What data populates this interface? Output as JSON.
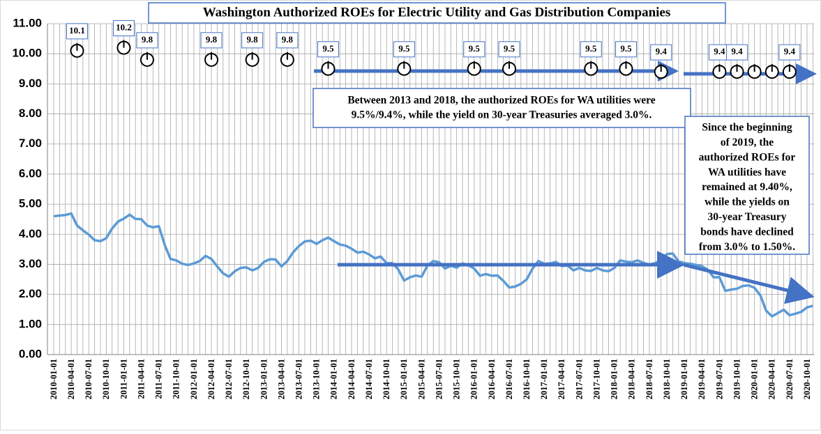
{
  "chart_data": {
    "type": "line",
    "title": "Washington Authorized ROEs for Electric Utility and Gas  Distribution Companies",
    "categories": [
      "2010-01-01",
      null,
      null,
      "2010-04-01",
      null,
      null,
      "2010-07-01",
      null,
      null,
      "2010-10-01",
      null,
      null,
      "2011-01-01",
      null,
      null,
      "2011-04-01",
      null,
      null,
      "2011-07-01",
      null,
      null,
      "2011-10-01",
      null,
      null,
      "2012-01-01",
      null,
      null,
      "2012-04-01",
      null,
      null,
      "2012-07-01",
      null,
      null,
      "2012-10-01",
      null,
      null,
      "2013-01-01",
      null,
      null,
      "2013-04-01",
      null,
      null,
      "2013-07-01",
      null,
      null,
      "2013-10-01",
      null,
      null,
      "2014-01-01",
      null,
      null,
      "2014-04-01",
      null,
      null,
      "2014-07-01",
      null,
      null,
      "2014-10-01",
      null,
      null,
      "2015-01-01",
      null,
      null,
      "2015-04-01",
      null,
      null,
      "2015-07-01",
      null,
      null,
      "2015-10-01",
      null,
      null,
      "2016-01-01",
      null,
      null,
      "2016-04-01",
      null,
      null,
      "2016-07-01",
      null,
      null,
      "2016-10-01",
      null,
      null,
      "2017-01-01",
      null,
      null,
      "2017-04-01",
      null,
      null,
      "2017-07-01",
      null,
      null,
      "2017-10-01",
      null,
      null,
      "2018-01-01",
      null,
      null,
      "2018-04-01",
      null,
      null,
      "2018-07-01",
      null,
      null,
      "2018-10-01",
      null,
      null,
      "2019-01-01",
      null,
      null,
      "2019-04-01",
      null,
      null,
      "2019-07-01",
      null,
      null,
      "2019-10-01",
      null,
      null,
      "2020-01-01",
      null,
      null,
      "2020-04-01",
      null,
      null,
      "2020-07-01",
      null,
      null,
      "2020-10-01",
      null
    ],
    "series": [
      {
        "name": null,
        "color": "#5b9bd5",
        "values": [
          4.6,
          4.62,
          4.64,
          4.69,
          4.29,
          4.13,
          3.99,
          3.8,
          3.77,
          3.87,
          4.19,
          4.42,
          4.52,
          4.65,
          4.51,
          4.5,
          4.29,
          4.23,
          4.27,
          3.65,
          3.18,
          3.13,
          3.02,
          2.98,
          3.03,
          3.11,
          3.28,
          3.18,
          2.93,
          2.7,
          2.59,
          2.77,
          2.88,
          2.9,
          2.8,
          2.88,
          3.08,
          3.17,
          3.16,
          2.93,
          3.11,
          3.4,
          3.61,
          3.76,
          3.79,
          3.68,
          3.8,
          3.89,
          3.77,
          3.66,
          3.62,
          3.52,
          3.39,
          3.42,
          3.33,
          3.2,
          3.26,
          3.04,
          3.04,
          2.83,
          2.46,
          2.57,
          2.63,
          2.59,
          2.96,
          3.11,
          3.07,
          2.86,
          2.95,
          2.89,
          3.03,
          2.97,
          2.86,
          2.62,
          2.68,
          2.62,
          2.63,
          2.45,
          2.23,
          2.26,
          2.35,
          2.5,
          2.86,
          3.11,
          3.02,
          3.03,
          3.08,
          2.94,
          2.96,
          2.8,
          2.88,
          2.8,
          2.78,
          2.88,
          2.8,
          2.77,
          2.88,
          3.13,
          3.09,
          3.07,
          3.13,
          3.05,
          2.99,
          3.04,
          3.15,
          3.34,
          3.36,
          3.1,
          3.04,
          3.02,
          2.98,
          2.94,
          2.82,
          2.57,
          2.57,
          2.12,
          2.16,
          2.19,
          2.28,
          2.3,
          2.22,
          1.97,
          1.46,
          1.27,
          1.38,
          1.49,
          1.31,
          1.36,
          1.42,
          1.57,
          1.62
        ]
      }
    ],
    "roe": {
      "color": "#000000",
      "x": [
        "2010-05-01",
        "2011-01-01",
        "2011-05-01",
        "2012-04-01",
        "2012-11-01",
        "2013-05-01",
        "2013-12-01",
        "2015-01-01",
        "2016-01-01",
        "2016-07-01",
        "2017-09-01",
        "2018-03-01",
        "2018-09-01",
        "2019-07-01",
        "2019-10-01",
        "2020-01-01",
        "2020-04-01",
        "2020-07-01"
      ],
      "values": [
        10.1,
        10.2,
        9.8,
        9.8,
        9.8,
        9.8,
        9.5,
        9.5,
        9.5,
        9.5,
        9.5,
        9.5,
        9.4,
        9.4,
        9.4,
        9.4,
        9.4,
        9.4
      ],
      "value_labels": [
        "10.1",
        "10.2",
        "9.8",
        "9.8",
        "9.8",
        "9.8",
        "9.5",
        "9.5",
        "9.5",
        "9.5",
        "9.5",
        "9.5",
        "9.4",
        "9.4",
        "9.4",
        null,
        null,
        "9.4"
      ]
    },
    "ylim": [
      0,
      11
    ],
    "yticks": [
      {
        "value": 0,
        "label": "0.00"
      },
      {
        "value": 1,
        "label": "1.00"
      },
      {
        "value": 2,
        "label": "2.00"
      },
      {
        "value": 3,
        "label": "3.00"
      },
      {
        "value": 4,
        "label": "4.00"
      },
      {
        "value": 5,
        "label": "5.00"
      },
      {
        "value": 6,
        "label": "6.00"
      },
      {
        "value": 7,
        "label": "7.00"
      },
      {
        "value": 8,
        "label": "8.00"
      },
      {
        "value": 9,
        "label": "9.00"
      },
      {
        "value": 10,
        "label": "10.00"
      },
      {
        "value": 11,
        "label": "11.00"
      }
    ],
    "grid": true,
    "annotations": [
      {
        "lines": [
          "Between 2013 and 2018, the authorized ROEs for WA utilities were",
          "9.5%/9.4%, while the yield on 30-year Treasuries averaged 3.0%."
        ]
      },
      {
        "lines": [
          "Since the beginning",
          "of 2019, the",
          "authorized ROEs for",
          "WA utilities have",
          "remained at 9.40%,",
          "while the yields on",
          "30-year Treasury",
          "bonds have declined",
          "from 3.0% to 1.50%."
        ]
      }
    ]
  }
}
